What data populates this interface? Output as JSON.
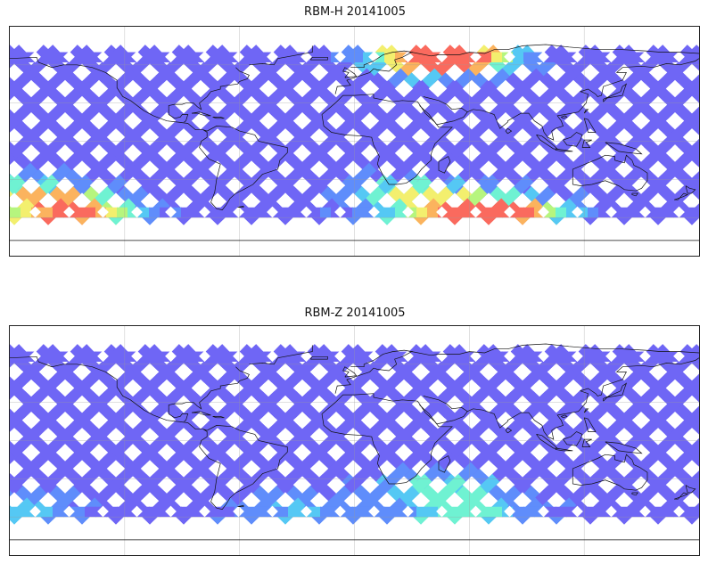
{
  "panels": [
    {
      "title": "RBM-H 20141005",
      "colormap": "jet",
      "palette": [
        "#6f66f5",
        "#5f8dfb",
        "#55c8f4",
        "#6ff2d2",
        "#b6f57e",
        "#f3ef6e",
        "#fbb35e",
        "#fa6a5e"
      ],
      "hot_regions": [
        {
          "lon": 48,
          "lat": 62,
          "intensity": 0.85
        },
        {
          "lon": 40,
          "lat": 66,
          "intensity": 0.65
        },
        {
          "lon": -148,
          "lat": -55,
          "intensity": 0.8
        },
        {
          "lon": 60,
          "lat": -58,
          "intensity": 0.8
        },
        {
          "lon": 82,
          "lat": -60,
          "intensity": 0.6
        },
        {
          "lon": -178,
          "lat": -45,
          "intensity": 0.55
        },
        {
          "lon": 30,
          "lat": -45,
          "intensity": 0.5
        }
      ]
    },
    {
      "title": "RBM-Z 20141005",
      "colormap": "jet",
      "palette": [
        "#6f66f5",
        "#5f8dfb",
        "#55c8f4",
        "#6ff2d2",
        "#b6f57e",
        "#f3ef6e",
        "#fbb35e",
        "#fa6a5e"
      ],
      "hot_regions": [
        {
          "lon": 40,
          "lat": -40,
          "intensity": 0.35
        },
        {
          "lon": 58,
          "lat": -55,
          "intensity": 0.35
        },
        {
          "lon": -178,
          "lat": -55,
          "intensity": 0.25
        },
        {
          "lon": -30,
          "lat": -58,
          "intensity": 0.2
        }
      ]
    }
  ],
  "map": {
    "projection": "equirectangular",
    "lon_range": [
      -180,
      180
    ],
    "lat_range": [
      -90,
      90
    ],
    "coverage_lat": [
      -60,
      70
    ],
    "grid_lon": [
      -120,
      -60,
      0,
      60,
      120
    ],
    "grid_lat": [
      -60,
      -30,
      0,
      30,
      60
    ],
    "grid": true
  }
}
